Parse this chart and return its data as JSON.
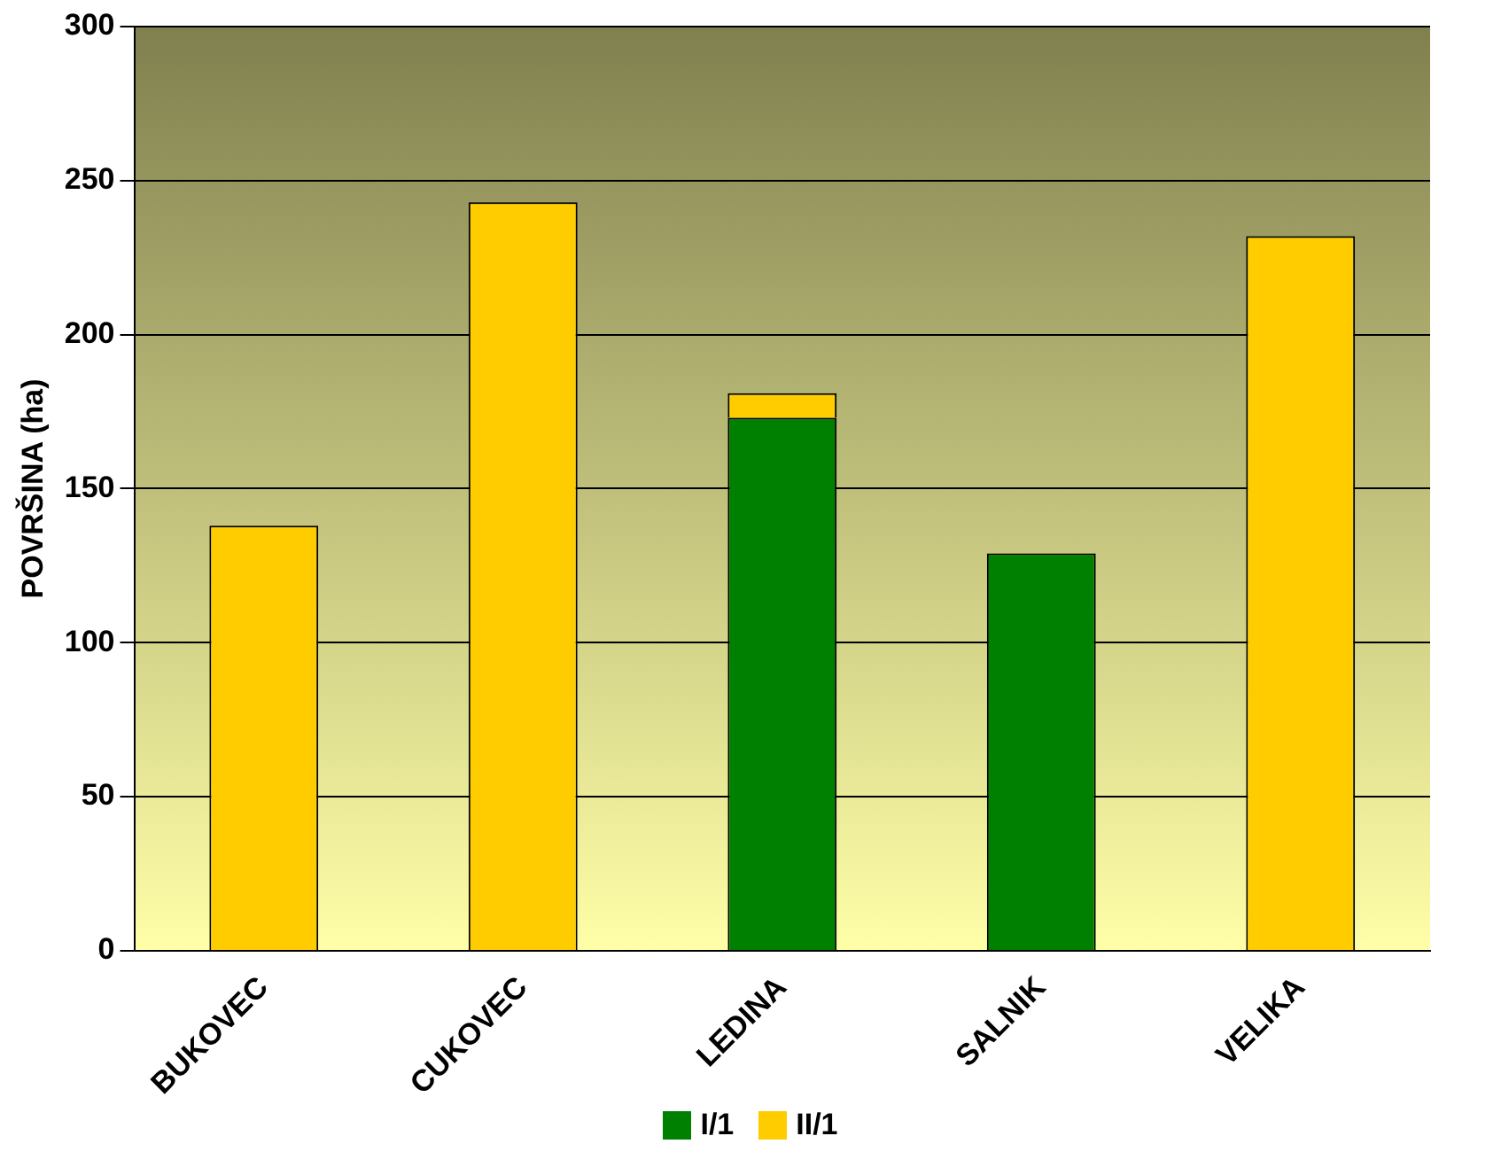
{
  "chart_data": {
    "type": "bar",
    "stacked": true,
    "ylabel": "POVRŠINA (ha)",
    "categories": [
      "BUKOVEC",
      "CUKOVEC",
      "LEDINA",
      "SALNIK",
      "VELIKA"
    ],
    "series": [
      {
        "name": "I/1",
        "color": "#008000",
        "values": [
          null,
          null,
          173,
          129,
          null
        ]
      },
      {
        "name": "II/1",
        "color": "#ffcc00",
        "values": [
          138,
          243,
          8,
          null,
          232
        ]
      }
    ],
    "ylim": [
      0,
      300
    ],
    "yticks": [
      0,
      50,
      100,
      150,
      200,
      250,
      300
    ],
    "grid": "y",
    "legend": "bottom"
  }
}
